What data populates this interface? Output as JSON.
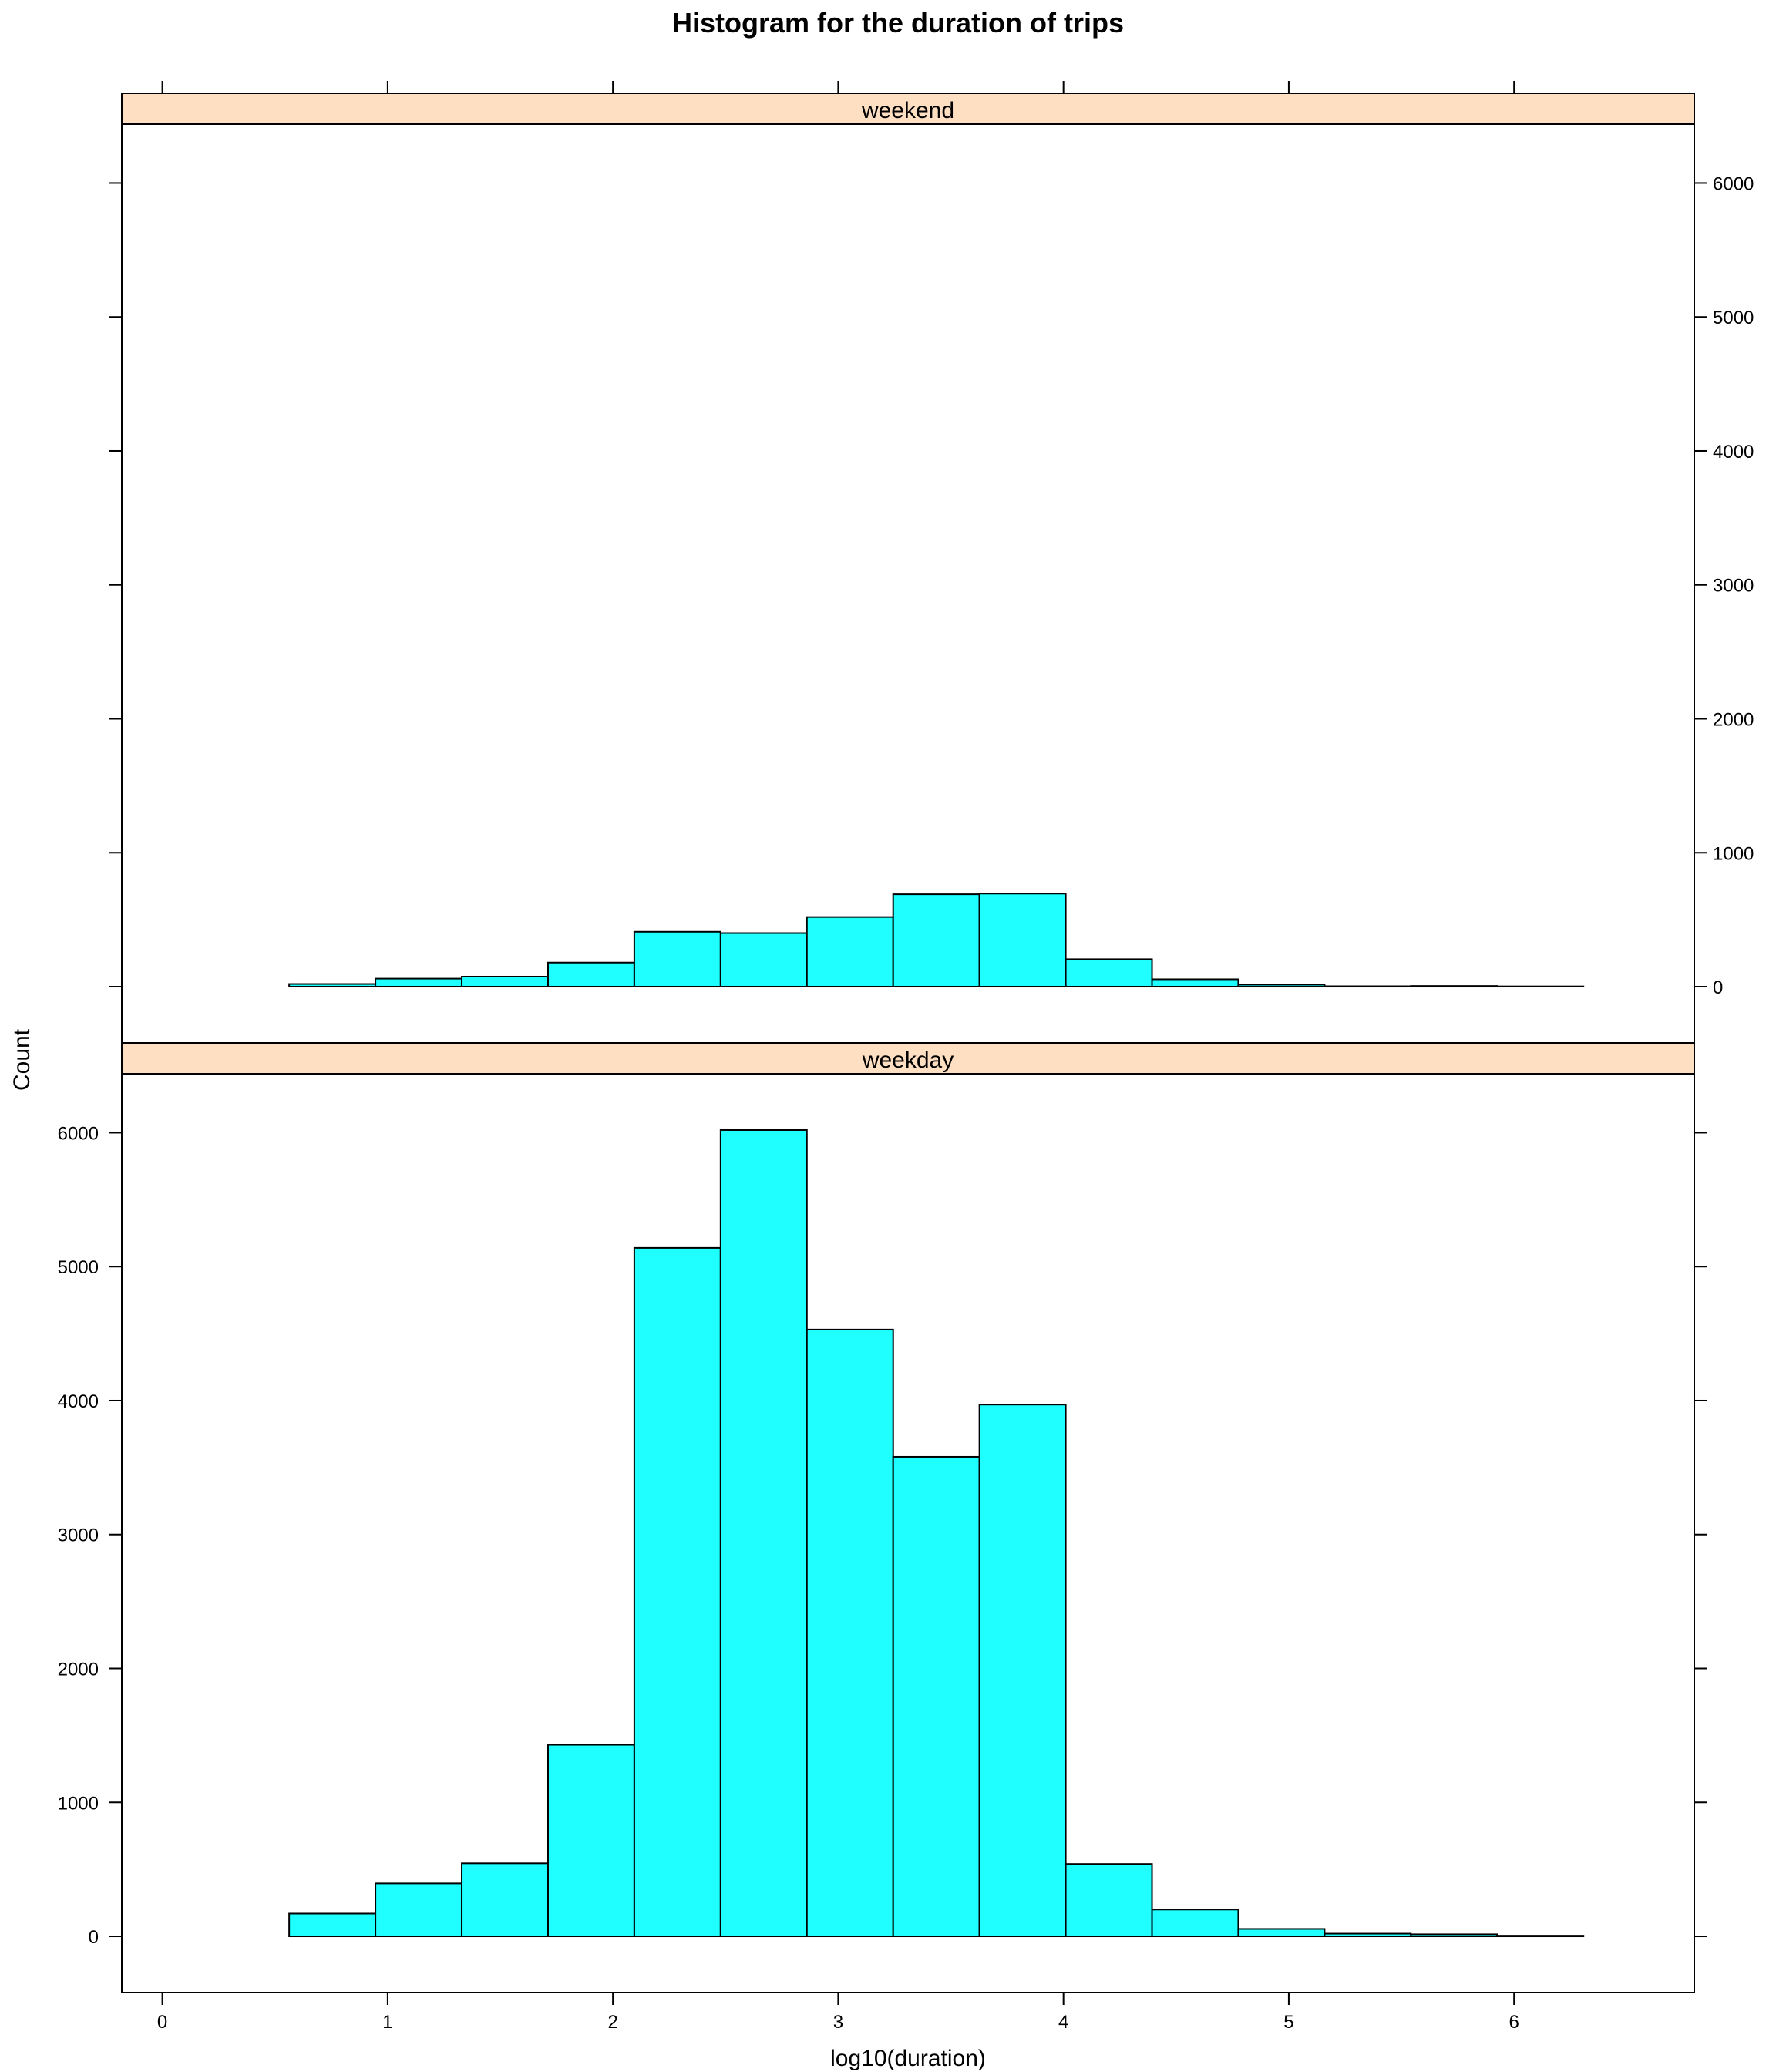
{
  "chart_data": {
    "type": "bar",
    "title": "Histogram for the duration of trips",
    "xlabel": "log10(duration)",
    "ylabel": "Count",
    "xlim": [
      -0.18,
      6.8
    ],
    "ylim": [
      -420,
      6440
    ],
    "x_ticks": [
      0,
      1,
      2,
      3,
      4,
      5,
      6
    ],
    "y_ticks": [
      0,
      1000,
      2000,
      3000,
      4000,
      5000,
      6000
    ],
    "bins": [
      0.18,
      0.563,
      0.946,
      1.329,
      1.712,
      2.095,
      2.478,
      2.861,
      3.244,
      3.627,
      4.01,
      4.393,
      4.776,
      5.159,
      5.542,
      5.925,
      6.308
    ],
    "colors": {
      "bar_fill": "#1fffff",
      "bar_stroke": "#000000",
      "strip_fill": "#ffdfc2"
    },
    "panels": [
      {
        "strip": "weekend",
        "values": [
          0,
          20,
          60,
          75,
          180,
          410,
          400,
          520,
          690,
          695,
          205,
          55,
          15,
          3,
          5,
          2
        ]
      },
      {
        "strip": "weekday",
        "values": [
          0,
          170,
          395,
          545,
          1430,
          5140,
          6020,
          4530,
          3580,
          3970,
          540,
          200,
          55,
          20,
          15,
          5
        ]
      }
    ]
  }
}
